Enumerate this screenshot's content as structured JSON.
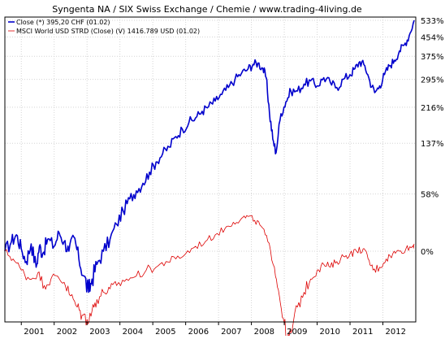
{
  "chart_data": {
    "type": "line",
    "title": "Syngenta NA / SIX Swiss Exchange / Chemie / www.trading-4living.de",
    "xlabel": "",
    "ylabel": "",
    "x_ticks": [
      "2001",
      "2002",
      "2003",
      "2004",
      "2005",
      "2006",
      "2007",
      "2008",
      "2009",
      "2010",
      "2011",
      "2012"
    ],
    "y_ticks": [
      "533%",
      "454%",
      "375%",
      "295%",
      "216%",
      "137%",
      "58%",
      "0%"
    ],
    "y_scale": "log",
    "xlim": [
      2000.5,
      2013.0
    ],
    "grid": true,
    "legend_position": "top-left",
    "legend": [
      "Close (*) 395,20 CHF (01.02)",
      "MSCI World USD STRD (Close) (V) 1416.789 USD (01.02)"
    ],
    "series": [
      {
        "name": "Close (*) 395,20 CHF (01.02)",
        "color": "#0000cc",
        "x": [
          2000.5,
          2000.7,
          2000.85,
          2001.0,
          2001.15,
          2001.3,
          2001.45,
          2001.55,
          2001.65,
          2001.8,
          2002.0,
          2002.15,
          2002.3,
          2002.45,
          2002.6,
          2002.75,
          2002.9,
          2003.05,
          2003.15,
          2003.3,
          2003.5,
          2003.7,
          2003.9,
          2004.1,
          2004.3,
          2004.5,
          2004.7,
          2004.9,
          2005.1,
          2005.3,
          2005.5,
          2005.7,
          2005.9,
          2006.1,
          2006.3,
          2006.5,
          2006.7,
          2006.9,
          2007.1,
          2007.3,
          2007.5,
          2007.7,
          2007.9,
          2008.05,
          2008.2,
          2008.35,
          2008.45,
          2008.55,
          2008.65,
          2008.75,
          2008.9,
          2009.05,
          2009.2,
          2009.4,
          2009.6,
          2009.8,
          2010.0,
          2010.2,
          2010.4,
          2010.6,
          2010.8,
          2011.0,
          2011.15,
          2011.3,
          2011.45,
          2011.6,
          2011.75,
          2011.9,
          2012.05,
          2012.2,
          2012.35,
          2012.5,
          2012.65,
          2012.8,
          2012.95
        ],
        "y": [
          0,
          8,
          14,
          2,
          -8,
          6,
          -12,
          4,
          -2,
          10,
          4,
          16,
          8,
          0,
          12,
          -6,
          -18,
          -28,
          -20,
          -10,
          0,
          10,
          24,
          38,
          52,
          62,
          72,
          88,
          104,
          118,
          130,
          150,
          165,
          180,
          190,
          206,
          218,
          232,
          250,
          270,
          295,
          315,
          330,
          345,
          350,
          330,
          300,
          200,
          145,
          120,
          200,
          230,
          260,
          260,
          280,
          290,
          275,
          300,
          285,
          270,
          295,
          310,
          330,
          355,
          340,
          290,
          255,
          275,
          310,
          340,
          360,
          395,
          420,
          460,
          533
        ]
      },
      {
        "name": "MSCI World USD STRD (Close) (V) 1416.789 USD (01.02)",
        "color": "#dd0000",
        "x": [
          2000.5,
          2000.75,
          2001.0,
          2001.25,
          2001.5,
          2001.7,
          2001.9,
          2002.1,
          2002.3,
          2002.5,
          2002.7,
          2002.85,
          2003.0,
          2003.15,
          2003.3,
          2003.5,
          2003.7,
          2003.9,
          2004.2,
          2004.5,
          2004.8,
          2005.1,
          2005.4,
          2005.7,
          2006.0,
          2006.3,
          2006.6,
          2006.9,
          2007.2,
          2007.45,
          2007.7,
          2007.9,
          2008.1,
          2008.3,
          2008.5,
          2008.7,
          2008.85,
          2009.0,
          2009.1,
          2009.2,
          2009.4,
          2009.6,
          2009.8,
          2010.0,
          2010.2,
          2010.4,
          2010.6,
          2010.8,
          2011.0,
          2011.2,
          2011.4,
          2011.55,
          2011.7,
          2011.9,
          2012.1,
          2012.3,
          2012.5,
          2012.7,
          2012.9,
          2012.95
        ],
        "y": [
          0,
          -6,
          -14,
          -20,
          -16,
          -24,
          -20,
          -18,
          -22,
          -30,
          -36,
          -40,
          -42,
          -38,
          -32,
          -28,
          -26,
          -24,
          -20,
          -18,
          -14,
          -12,
          -8,
          -6,
          -2,
          4,
          8,
          14,
          20,
          26,
          30,
          32,
          28,
          22,
          8,
          -12,
          -30,
          -44,
          -52,
          -48,
          -36,
          -28,
          -20,
          -14,
          -10,
          -12,
          -8,
          -4,
          -2,
          0,
          2,
          -6,
          -14,
          -12,
          -6,
          -2,
          0,
          2,
          4,
          6
        ]
      }
    ]
  }
}
